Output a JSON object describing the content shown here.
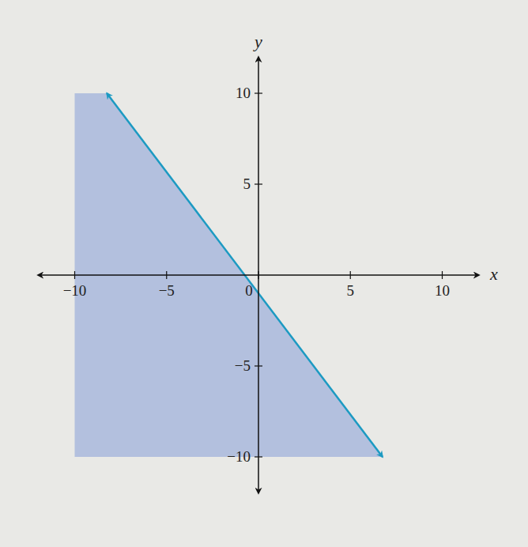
{
  "chart_data": {
    "type": "line",
    "x_label": "x",
    "y_label": "y",
    "xlim": [
      -12,
      12
    ],
    "ylim": [
      -12,
      12
    ],
    "xticks": [
      -10,
      -5,
      0,
      5,
      10
    ],
    "yticks": [
      -10,
      -5,
      5,
      10
    ],
    "series": [
      {
        "type": "area",
        "color": "#a9b8dc",
        "x": [
          -10,
          -8.25,
          6.75,
          -10
        ],
        "values": [
          10,
          10,
          -10,
          -10
        ]
      },
      {
        "type": "line",
        "color": "#1c9ac2",
        "marker": "arrow",
        "x": [
          -8.25,
          6.75
        ],
        "values": [
          10,
          -10
        ]
      }
    ]
  }
}
